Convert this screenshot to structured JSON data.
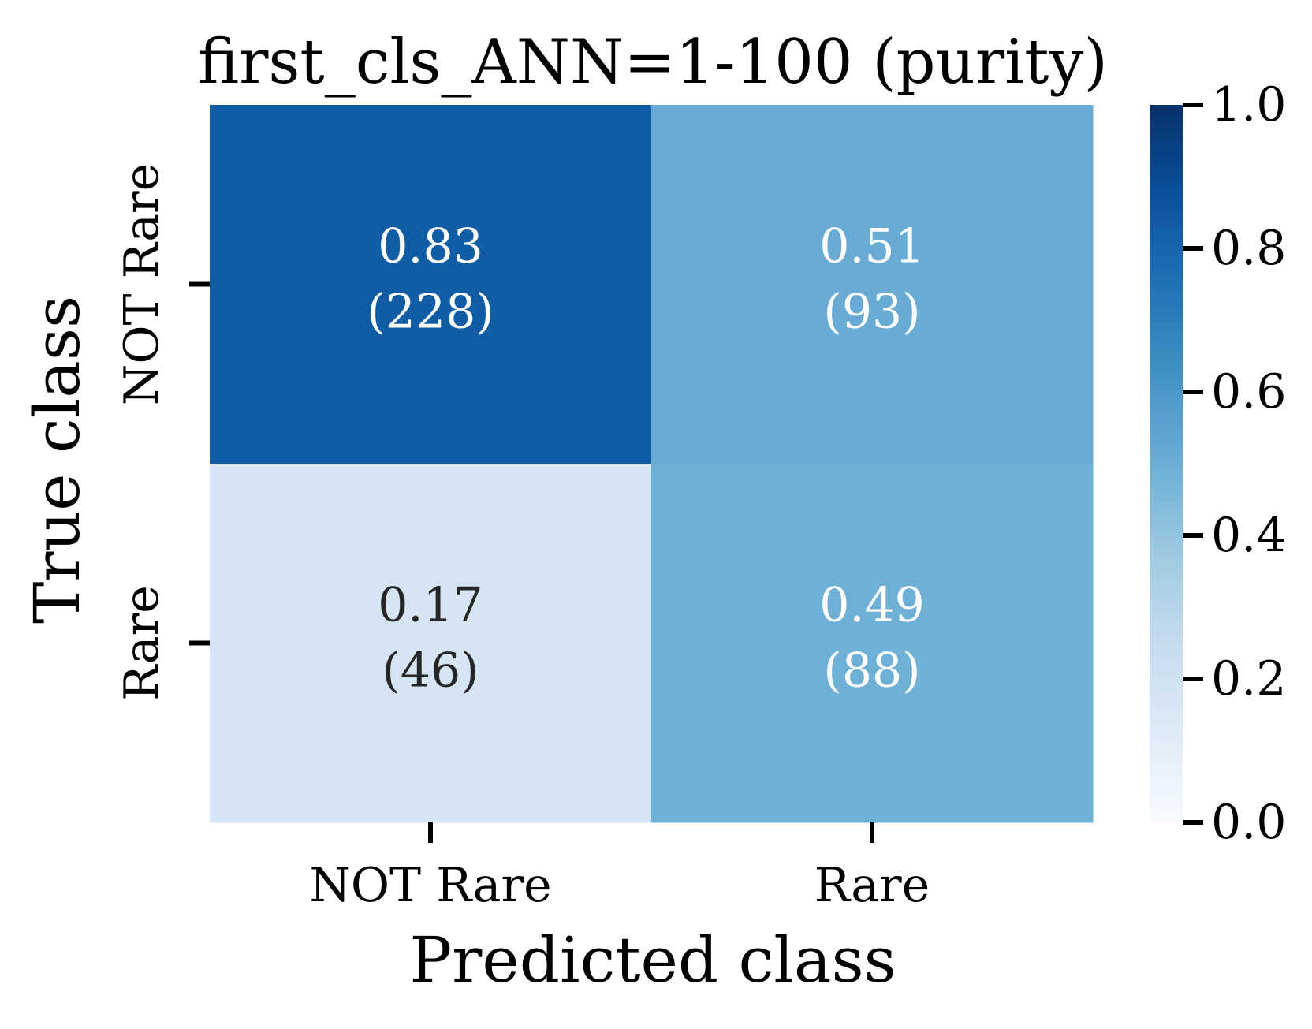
{
  "chart_data": {
    "type": "heatmap",
    "title": "first_cls_ANN=1-100 (purity)",
    "xlabel": "Predicted class",
    "ylabel": "True class",
    "x_categories": [
      "NOT Rare",
      "Rare"
    ],
    "y_categories": [
      "NOT Rare",
      "Rare"
    ],
    "values": [
      [
        0.83,
        0.51
      ],
      [
        0.17,
        0.49
      ]
    ],
    "counts": [
      [
        "(228)",
        "(93)"
      ],
      [
        "(46)",
        "(88)"
      ]
    ],
    "colorscale": "Blues",
    "colorbar": {
      "range": [
        0,
        1
      ],
      "ticks": [
        "0.0",
        "0.2",
        "0.4",
        "0.6",
        "0.8",
        "1.0"
      ]
    },
    "grid": false
  }
}
